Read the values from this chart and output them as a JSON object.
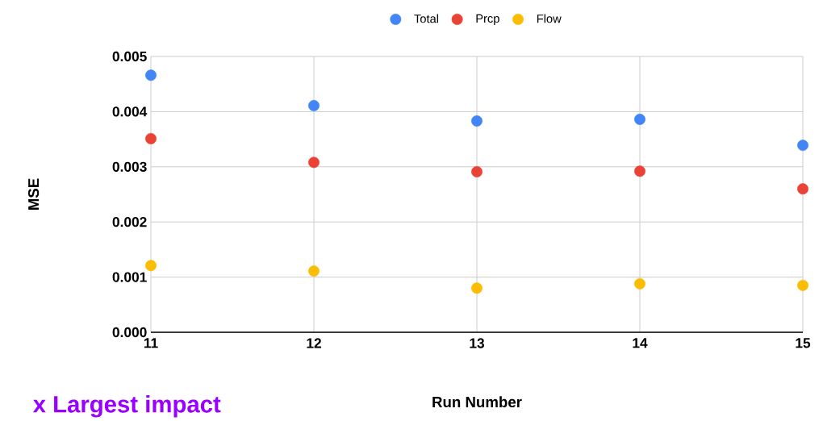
{
  "chart_data": {
    "type": "scatter",
    "xlabel": "Run Number",
    "ylabel": "MSE",
    "x": [
      11,
      12,
      13,
      14,
      15
    ],
    "series": [
      {
        "name": "Total",
        "color": "#4285f4",
        "values": [
          0.00466,
          0.00411,
          0.00383,
          0.00386,
          0.00339
        ]
      },
      {
        "name": "Prcp",
        "color": "#ea4335",
        "values": [
          0.00351,
          0.00308,
          0.00291,
          0.00292,
          0.0026
        ]
      },
      {
        "name": "Flow",
        "color": "#fbbc04",
        "values": [
          0.00121,
          0.00111,
          0.0008,
          0.00088,
          0.00085
        ]
      }
    ],
    "xlim": [
      11,
      15
    ],
    "xticks": [
      11,
      12,
      13,
      14,
      15
    ],
    "ylim": [
      0,
      0.005
    ],
    "yticks": [
      {
        "value": 0,
        "label": "0.000"
      },
      0.001,
      0.002,
      0.003,
      0.004,
      0.005
    ],
    "grid": true,
    "legend": "top",
    "annotations": [
      "x Largest impact"
    ]
  }
}
